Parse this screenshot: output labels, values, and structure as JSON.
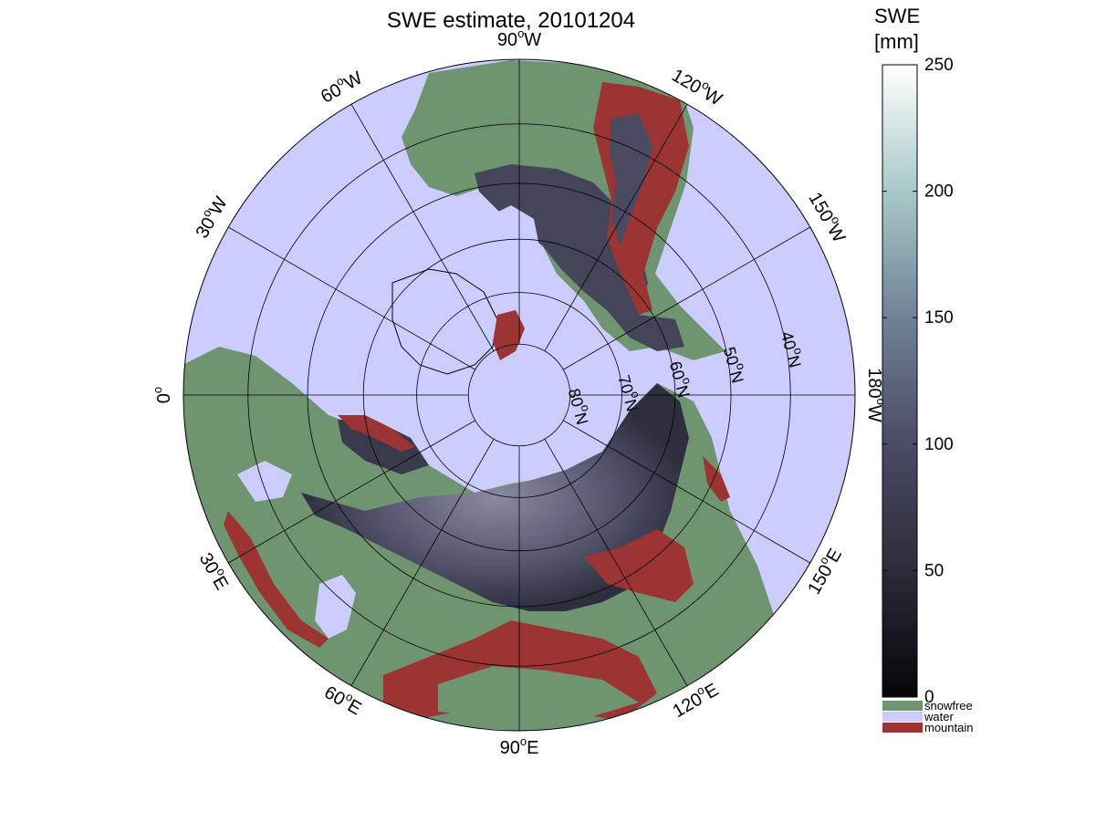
{
  "title": "SWE estimate, 20101204",
  "colors": {
    "water": "#ccccff",
    "snowfree": "#6f9470",
    "mountain": "#9b3432",
    "swe_low": "#0c0c12",
    "swe_mid": "#4a4a64",
    "swe_high": "#ffffff",
    "grid": "#000000"
  },
  "map": {
    "projection": "north-polar stereographic",
    "longitude_labels": [
      {
        "deg": 0,
        "text": "0",
        "sup": "o",
        "suffix": ""
      },
      {
        "deg": 30,
        "text": "30",
        "sup": "o",
        "suffix": "W"
      },
      {
        "deg": 60,
        "text": "60",
        "sup": "o",
        "suffix": "W"
      },
      {
        "deg": 90,
        "text": "90",
        "sup": "o",
        "suffix": "W"
      },
      {
        "deg": 120,
        "text": "120",
        "sup": "o",
        "suffix": "W"
      },
      {
        "deg": 150,
        "text": "150",
        "sup": "o",
        "suffix": "W"
      },
      {
        "deg": 180,
        "text": "180",
        "sup": "o",
        "suffix": "W"
      },
      {
        "deg": 210,
        "text": "150",
        "sup": "o",
        "suffix": "E"
      },
      {
        "deg": 240,
        "text": "120",
        "sup": "o",
        "suffix": "E"
      },
      {
        "deg": 270,
        "text": "90",
        "sup": "o",
        "suffix": "E"
      },
      {
        "deg": 300,
        "text": "60",
        "sup": "o",
        "suffix": "E"
      },
      {
        "deg": 330,
        "text": "30",
        "sup": "o",
        "suffix": "E"
      }
    ],
    "latitude_labels": [
      {
        "lat": 80,
        "text": "80",
        "sup": "o",
        "suffix": "N"
      },
      {
        "lat": 70,
        "text": "70",
        "sup": "o",
        "suffix": "N"
      },
      {
        "lat": 60,
        "text": "60",
        "sup": "o",
        "suffix": "N"
      },
      {
        "lat": 50,
        "text": "50",
        "sup": "o",
        "suffix": "N"
      },
      {
        "lat": 40,
        "text": "40",
        "sup": "o",
        "suffix": "N"
      }
    ],
    "latitude_circles": [
      80,
      70,
      60,
      50,
      40,
      30
    ]
  },
  "colorbar": {
    "title_line1": "SWE",
    "title_line2": "[mm]",
    "min": 0,
    "max": 250,
    "ticks": [
      {
        "value": 0,
        "label": "0"
      },
      {
        "value": 50,
        "label": "50"
      },
      {
        "value": 100,
        "label": "100"
      },
      {
        "value": 150,
        "label": "150"
      },
      {
        "value": 200,
        "label": "200"
      },
      {
        "value": 250,
        "label": "250"
      }
    ],
    "categories": [
      {
        "label": "snowfree",
        "color": "#6f9470"
      },
      {
        "label": "water",
        "color": "#ccccff"
      },
      {
        "label": "mountain",
        "color": "#9b3432"
      }
    ]
  }
}
